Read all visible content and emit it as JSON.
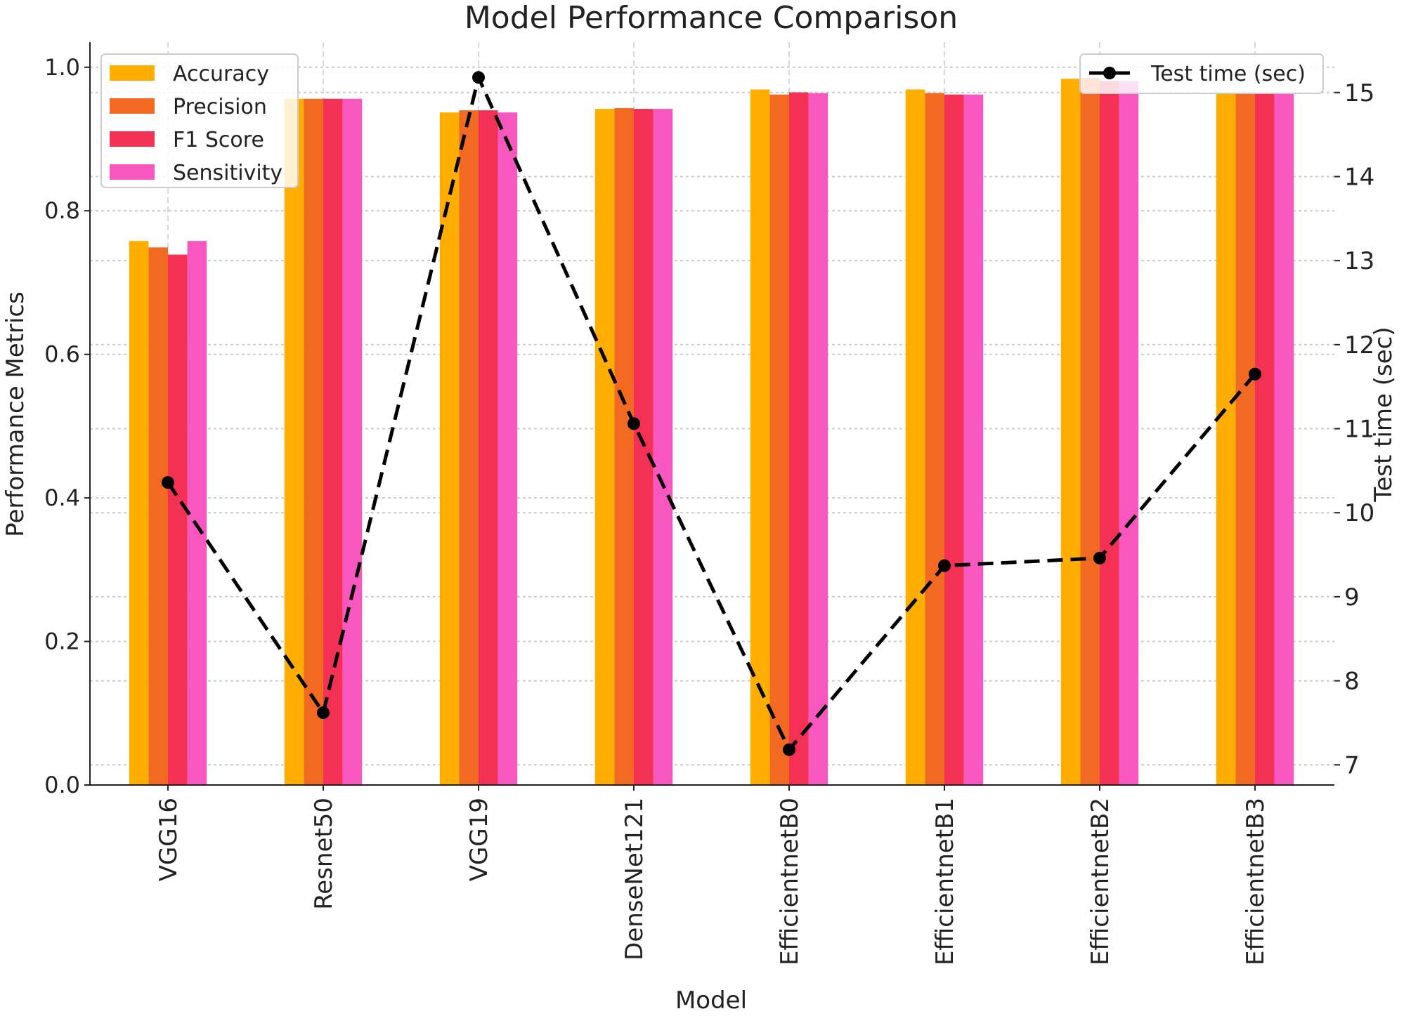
{
  "chart_data": {
    "type": "bar",
    "title": "Model Performance Comparison",
    "xlabel": "Model",
    "ylabel": "Performance Metrics",
    "y2label": "Test time (sec)",
    "categories": [
      "VGG16",
      "Resnet50",
      "VGG19",
      "DenseNet121",
      "EfficientnetB0",
      "EfficientnetB1",
      "EfficientnetB2",
      "EfficientnetB3"
    ],
    "series": [
      {
        "name": "Accuracy",
        "color": "#FFAE00",
        "values": [
          0.758,
          0.956,
          0.937,
          0.942,
          0.969,
          0.969,
          0.984,
          0.963
        ]
      },
      {
        "name": "Precision",
        "color": "#F26A21",
        "values": [
          0.749,
          0.956,
          0.94,
          0.943,
          0.962,
          0.964,
          0.985,
          0.963
        ]
      },
      {
        "name": "F1 Score",
        "color": "#F43155",
        "values": [
          0.739,
          0.956,
          0.94,
          0.942,
          0.965,
          0.962,
          0.981,
          0.963
        ]
      },
      {
        "name": "Sensitivity",
        "color": "#F857C0",
        "values": [
          0.758,
          0.956,
          0.937,
          0.942,
          0.964,
          0.962,
          0.981,
          0.963
        ]
      }
    ],
    "line_series": {
      "name": "Test time (sec)",
      "color": "#000000",
      "style": "dashed",
      "marker": "circle",
      "axis": "right",
      "values": [
        10.36,
        7.62,
        15.18,
        11.06,
        7.18,
        9.37,
        9.46,
        11.65
      ]
    },
    "ylim": [
      0,
      1.035
    ],
    "yticks": [
      "0.0",
      "0.2",
      "0.4",
      "0.6",
      "0.8",
      "1.0"
    ],
    "y2lim": [
      6.76,
      15.6
    ],
    "y2ticks": [
      "7",
      "8",
      "9",
      "10",
      "11",
      "12",
      "13",
      "14",
      "15"
    ],
    "grid": true,
    "legend_bars": "top-left",
    "legend_line": "top-right"
  }
}
